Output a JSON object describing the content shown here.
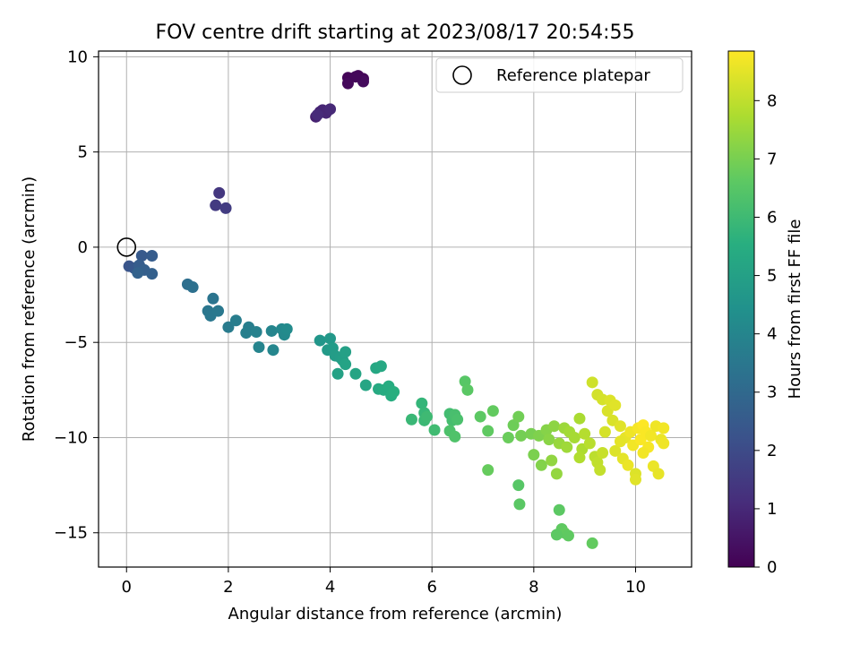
{
  "chart_data": {
    "type": "scatter",
    "title": "FOV centre drift starting at 2023/08/17 20:54:55",
    "xlabel": "Angular distance from reference (arcmin)",
    "ylabel": "Rotation from reference (arcmin)",
    "xlim": [
      -0.55,
      11.1
    ],
    "ylim": [
      -16.8,
      10.3
    ],
    "xticks": [
      0,
      2,
      4,
      6,
      8,
      10
    ],
    "yticks": [
      -15,
      -10,
      -5,
      0,
      5,
      10
    ],
    "xtick_labels": [
      "0",
      "2",
      "4",
      "6",
      "8",
      "10"
    ],
    "ytick_labels": [
      "−15",
      "−10",
      "−5",
      "0",
      "5",
      "10"
    ],
    "grid": true,
    "colormap": "viridis",
    "colorbar": {
      "label": "Hours from first FF file",
      "range": [
        0,
        8.85
      ],
      "ticks": [
        0,
        1,
        2,
        3,
        4,
        5,
        6,
        7,
        8
      ],
      "tick_labels": [
        "0",
        "1",
        "2",
        "3",
        "4",
        "5",
        "6",
        "7",
        "8"
      ]
    },
    "legend": {
      "position": "top-right",
      "label": "Reference platepar"
    },
    "reference_point": {
      "x": 0,
      "y": 0
    },
    "points": [
      {
        "x": 4.35,
        "y": 8.9,
        "c": 0.1
      },
      {
        "x": 4.55,
        "y": 9.0,
        "c": 0.12
      },
      {
        "x": 4.65,
        "y": 8.85,
        "c": 0.15
      },
      {
        "x": 4.35,
        "y": 8.6,
        "c": 0.2
      },
      {
        "x": 4.65,
        "y": 8.7,
        "c": 0.25
      },
      {
        "x": 4.5,
        "y": 8.95,
        "c": 0.18
      },
      {
        "x": 3.72,
        "y": 6.85,
        "c": 0.8
      },
      {
        "x": 3.8,
        "y": 7.1,
        "c": 0.85
      },
      {
        "x": 3.85,
        "y": 7.2,
        "c": 0.9
      },
      {
        "x": 3.92,
        "y": 7.05,
        "c": 0.95
      },
      {
        "x": 4.0,
        "y": 7.25,
        "c": 1.0
      },
      {
        "x": 3.75,
        "y": 6.95,
        "c": 1.05
      },
      {
        "x": 1.82,
        "y": 2.85,
        "c": 1.4
      },
      {
        "x": 1.75,
        "y": 2.2,
        "c": 1.5
      },
      {
        "x": 1.95,
        "y": 2.05,
        "c": 1.55
      },
      {
        "x": 0.05,
        "y": -1.0,
        "c": 2.3
      },
      {
        "x": 0.15,
        "y": -1.1,
        "c": 2.4
      },
      {
        "x": 0.3,
        "y": -0.45,
        "c": 2.5
      },
      {
        "x": 0.5,
        "y": -0.45,
        "c": 2.55
      },
      {
        "x": 0.25,
        "y": -0.95,
        "c": 2.6
      },
      {
        "x": 0.35,
        "y": -1.2,
        "c": 2.65
      },
      {
        "x": 0.5,
        "y": -1.4,
        "c": 2.7
      },
      {
        "x": 0.22,
        "y": -1.35,
        "c": 2.75
      },
      {
        "x": 1.2,
        "y": -1.95,
        "c": 3.2
      },
      {
        "x": 1.3,
        "y": -2.1,
        "c": 3.25
      },
      {
        "x": 1.7,
        "y": -2.7,
        "c": 3.4
      },
      {
        "x": 1.6,
        "y": -3.35,
        "c": 3.45
      },
      {
        "x": 1.65,
        "y": -3.6,
        "c": 3.5
      },
      {
        "x": 1.8,
        "y": -3.35,
        "c": 3.55
      },
      {
        "x": 2.0,
        "y": -4.2,
        "c": 3.65
      },
      {
        "x": 2.15,
        "y": -3.85,
        "c": 3.7
      },
      {
        "x": 2.4,
        "y": -4.2,
        "c": 3.75
      },
      {
        "x": 2.35,
        "y": -4.5,
        "c": 3.8
      },
      {
        "x": 2.55,
        "y": -4.45,
        "c": 3.85
      },
      {
        "x": 2.6,
        "y": -5.25,
        "c": 3.95
      },
      {
        "x": 2.85,
        "y": -4.4,
        "c": 4.0
      },
      {
        "x": 2.88,
        "y": -5.4,
        "c": 4.05
      },
      {
        "x": 3.05,
        "y": -4.3,
        "c": 4.1
      },
      {
        "x": 3.1,
        "y": -4.6,
        "c": 4.15
      },
      {
        "x": 3.15,
        "y": -4.3,
        "c": 4.2
      },
      {
        "x": 3.8,
        "y": -4.9,
        "c": 4.6
      },
      {
        "x": 4.0,
        "y": -4.8,
        "c": 4.7
      },
      {
        "x": 3.95,
        "y": -5.4,
        "c": 4.75
      },
      {
        "x": 4.05,
        "y": -5.3,
        "c": 4.8
      },
      {
        "x": 4.1,
        "y": -5.7,
        "c": 4.85
      },
      {
        "x": 4.2,
        "y": -5.8,
        "c": 4.9
      },
      {
        "x": 4.25,
        "y": -5.95,
        "c": 4.95
      },
      {
        "x": 4.3,
        "y": -5.5,
        "c": 5.0
      },
      {
        "x": 4.15,
        "y": -6.65,
        "c": 5.05
      },
      {
        "x": 4.3,
        "y": -6.15,
        "c": 5.1
      },
      {
        "x": 4.5,
        "y": -6.65,
        "c": 5.15
      },
      {
        "x": 4.7,
        "y": -7.25,
        "c": 5.2
      },
      {
        "x": 4.9,
        "y": -6.35,
        "c": 5.25
      },
      {
        "x": 5.0,
        "y": -6.25,
        "c": 5.3
      },
      {
        "x": 4.95,
        "y": -7.45,
        "c": 5.35
      },
      {
        "x": 5.05,
        "y": -7.5,
        "c": 5.4
      },
      {
        "x": 5.15,
        "y": -7.3,
        "c": 5.45
      },
      {
        "x": 5.2,
        "y": -7.8,
        "c": 5.5
      },
      {
        "x": 5.25,
        "y": -7.6,
        "c": 5.55
      },
      {
        "x": 5.8,
        "y": -8.2,
        "c": 5.8
      },
      {
        "x": 5.85,
        "y": -8.7,
        "c": 5.85
      },
      {
        "x": 5.6,
        "y": -9.05,
        "c": 5.9
      },
      {
        "x": 5.85,
        "y": -9.1,
        "c": 5.95
      },
      {
        "x": 5.9,
        "y": -8.9,
        "c": 6.0
      },
      {
        "x": 6.05,
        "y": -9.6,
        "c": 6.05
      },
      {
        "x": 6.35,
        "y": -8.75,
        "c": 6.1
      },
      {
        "x": 6.4,
        "y": -9.1,
        "c": 6.15
      },
      {
        "x": 6.45,
        "y": -8.8,
        "c": 6.2
      },
      {
        "x": 6.5,
        "y": -9.05,
        "c": 6.25
      },
      {
        "x": 6.35,
        "y": -9.65,
        "c": 6.3
      },
      {
        "x": 6.45,
        "y": -9.95,
        "c": 6.35
      },
      {
        "x": 6.65,
        "y": -7.05,
        "c": 6.5
      },
      {
        "x": 6.7,
        "y": -7.5,
        "c": 6.55
      },
      {
        "x": 6.95,
        "y": -8.9,
        "c": 6.6
      },
      {
        "x": 7.1,
        "y": -9.65,
        "c": 6.65
      },
      {
        "x": 7.2,
        "y": -8.6,
        "c": 6.7
      },
      {
        "x": 7.1,
        "y": -11.7,
        "c": 6.75
      },
      {
        "x": 7.5,
        "y": -10.0,
        "c": 6.8
      },
      {
        "x": 7.6,
        "y": -9.35,
        "c": 6.85
      },
      {
        "x": 7.7,
        "y": -8.9,
        "c": 6.9
      },
      {
        "x": 7.75,
        "y": -9.9,
        "c": 6.95
      },
      {
        "x": 7.7,
        "y": -12.5,
        "c": 6.5
      },
      {
        "x": 7.72,
        "y": -13.5,
        "c": 6.55
      },
      {
        "x": 8.5,
        "y": -13.8,
        "c": 6.6
      },
      {
        "x": 8.55,
        "y": -14.8,
        "c": 6.65
      },
      {
        "x": 8.6,
        "y": -15.0,
        "c": 6.7
      },
      {
        "x": 8.45,
        "y": -15.1,
        "c": 6.6
      },
      {
        "x": 8.68,
        "y": -15.15,
        "c": 6.65
      },
      {
        "x": 9.15,
        "y": -15.55,
        "c": 6.7
      },
      {
        "x": 7.95,
        "y": -9.8,
        "c": 7.0
      },
      {
        "x": 8.0,
        "y": -10.9,
        "c": 7.05
      },
      {
        "x": 8.1,
        "y": -9.9,
        "c": 7.1
      },
      {
        "x": 8.15,
        "y": -11.45,
        "c": 7.15
      },
      {
        "x": 8.25,
        "y": -9.6,
        "c": 7.2
      },
      {
        "x": 8.3,
        "y": -10.1,
        "c": 7.25
      },
      {
        "x": 8.4,
        "y": -9.4,
        "c": 7.3
      },
      {
        "x": 8.35,
        "y": -11.2,
        "c": 7.35
      },
      {
        "x": 8.45,
        "y": -11.9,
        "c": 7.4
      },
      {
        "x": 8.5,
        "y": -10.3,
        "c": 7.45
      },
      {
        "x": 8.6,
        "y": -9.5,
        "c": 7.5
      },
      {
        "x": 8.65,
        "y": -10.5,
        "c": 7.55
      },
      {
        "x": 8.7,
        "y": -9.7,
        "c": 7.6
      },
      {
        "x": 8.8,
        "y": -10.0,
        "c": 7.65
      },
      {
        "x": 8.9,
        "y": -9.0,
        "c": 7.7
      },
      {
        "x": 8.95,
        "y": -10.6,
        "c": 7.75
      },
      {
        "x": 8.9,
        "y": -11.05,
        "c": 7.8
      },
      {
        "x": 9.0,
        "y": -9.8,
        "c": 7.85
      },
      {
        "x": 9.1,
        "y": -10.3,
        "c": 7.9
      },
      {
        "x": 9.2,
        "y": -11.0,
        "c": 7.95
      },
      {
        "x": 9.25,
        "y": -11.3,
        "c": 8.0
      },
      {
        "x": 9.3,
        "y": -11.7,
        "c": 8.05
      },
      {
        "x": 9.35,
        "y": -10.8,
        "c": 8.1
      },
      {
        "x": 9.15,
        "y": -7.1,
        "c": 8.2
      },
      {
        "x": 9.25,
        "y": -7.75,
        "c": 8.25
      },
      {
        "x": 9.35,
        "y": -8.0,
        "c": 8.3
      },
      {
        "x": 9.45,
        "y": -8.6,
        "c": 8.35
      },
      {
        "x": 9.5,
        "y": -8.05,
        "c": 8.4
      },
      {
        "x": 9.6,
        "y": -8.3,
        "c": 8.45
      },
      {
        "x": 9.4,
        "y": -9.7,
        "c": 8.3
      },
      {
        "x": 9.55,
        "y": -9.1,
        "c": 8.35
      },
      {
        "x": 9.6,
        "y": -10.7,
        "c": 8.4
      },
      {
        "x": 9.7,
        "y": -9.4,
        "c": 8.45
      },
      {
        "x": 9.75,
        "y": -11.1,
        "c": 8.5
      },
      {
        "x": 9.8,
        "y": -10.0,
        "c": 8.55
      },
      {
        "x": 9.85,
        "y": -11.45,
        "c": 8.6
      },
      {
        "x": 9.9,
        "y": -9.7,
        "c": 8.65
      },
      {
        "x": 9.95,
        "y": -10.4,
        "c": 8.7
      },
      {
        "x": 10.0,
        "y": -11.9,
        "c": 8.4
      },
      {
        "x": 10.0,
        "y": -12.2,
        "c": 8.45
      },
      {
        "x": 10.05,
        "y": -9.5,
        "c": 8.75
      },
      {
        "x": 10.1,
        "y": -10.1,
        "c": 8.8
      },
      {
        "x": 10.15,
        "y": -9.35,
        "c": 8.85
      },
      {
        "x": 10.2,
        "y": -9.7,
        "c": 8.8
      },
      {
        "x": 10.25,
        "y": -10.5,
        "c": 8.75
      },
      {
        "x": 10.3,
        "y": -9.9,
        "c": 8.7
      },
      {
        "x": 10.35,
        "y": -11.5,
        "c": 8.6
      },
      {
        "x": 10.4,
        "y": -9.4,
        "c": 8.65
      },
      {
        "x": 10.45,
        "y": -11.9,
        "c": 8.55
      },
      {
        "x": 10.5,
        "y": -10.1,
        "c": 8.6
      },
      {
        "x": 10.55,
        "y": -9.5,
        "c": 8.7
      },
      {
        "x": 10.55,
        "y": -10.3,
        "c": 8.65
      },
      {
        "x": 10.15,
        "y": -10.8,
        "c": 8.7
      },
      {
        "x": 9.7,
        "y": -10.2,
        "c": 8.5
      }
    ]
  }
}
